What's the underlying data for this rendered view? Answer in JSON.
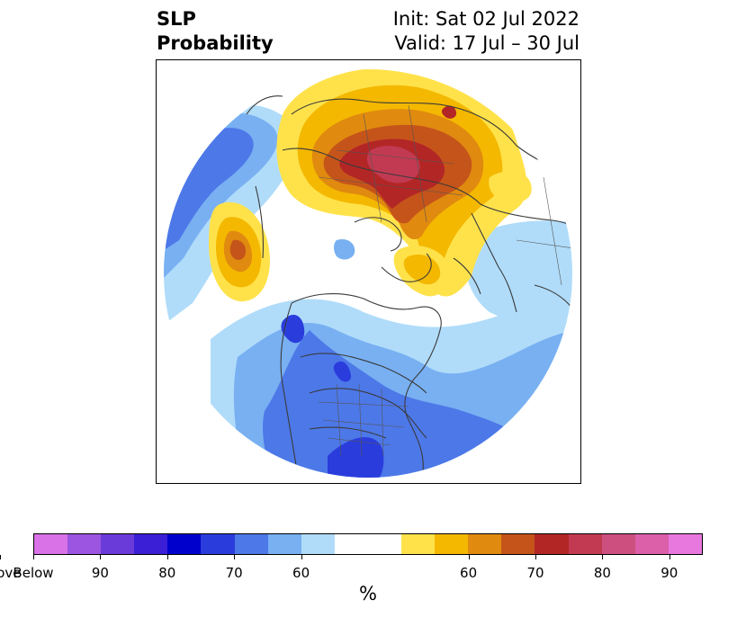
{
  "title": {
    "left_line1": "SLP",
    "left_line2": "Probability",
    "right_line1": "Init: Sat 02 Jul 2022",
    "right_line2": "Valid: 17 Jul – 30 Jul"
  },
  "colorbar": {
    "unit": "%",
    "colors": [
      "#d872e6",
      "#9b55e0",
      "#6a3bd9",
      "#3a1fd6",
      "#0000cd",
      "#2a3ddc",
      "#4d78e8",
      "#78b0f2",
      "#b0dcfa",
      "#ffffff",
      "#ffe24a",
      "#f4b800",
      "#e08a10",
      "#c5541a",
      "#b32626",
      "#c23a52",
      "#cc4f80",
      "#db5fa9",
      "#e878dd"
    ],
    "widths": [
      1,
      1,
      1,
      1,
      1,
      1,
      1,
      1,
      1,
      2,
      1,
      1,
      1,
      1,
      1,
      1,
      1,
      1,
      1
    ],
    "ticks": [
      "Below",
      "90",
      "80",
      "70",
      "60",
      "60",
      "70",
      "80",
      "90",
      "Above"
    ]
  },
  "map": {
    "projection": "polar",
    "colors": {
      "below_light": "#b0dcfa",
      "below_60": "#78b0f2",
      "below_65": "#4d78e8",
      "below_70": "#2a3ddc",
      "above_55": "#ffe24a",
      "above_60": "#f4b800",
      "above_65": "#e08a10",
      "above_70": "#c5541a",
      "above_75": "#b32626",
      "above_80": "#c23a52"
    }
  }
}
